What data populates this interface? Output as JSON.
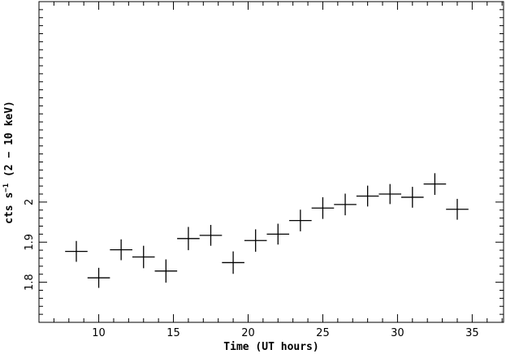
{
  "chart_data": {
    "type": "scatter",
    "xlabel": "Time (UT hours)",
    "ylabel": "cts s",
    "ylabel_sup": "−1",
    "ylabel_tail": " (2 − 10 keV)",
    "xlim": [
      6,
      37.1
    ],
    "ylim": [
      1.7,
      2.5
    ],
    "x_ticks": [
      10,
      15,
      20,
      25,
      30,
      35
    ],
    "y_ticks": [
      1.8,
      1.9,
      2.0
    ],
    "y_tick_labels": [
      "1.8",
      "1.9",
      "2"
    ],
    "grid": false,
    "points": [
      {
        "x": 8.5,
        "y": 1.877,
        "xerr": 0.75,
        "yerr": 0.026
      },
      {
        "x": 10.0,
        "y": 1.811,
        "xerr": 0.75,
        "yerr": 0.025
      },
      {
        "x": 11.5,
        "y": 1.881,
        "xerr": 0.75,
        "yerr": 0.026
      },
      {
        "x": 13.0,
        "y": 1.863,
        "xerr": 0.75,
        "yerr": 0.028
      },
      {
        "x": 14.5,
        "y": 1.828,
        "xerr": 0.75,
        "yerr": 0.029
      },
      {
        "x": 16.0,
        "y": 1.909,
        "xerr": 0.75,
        "yerr": 0.029
      },
      {
        "x": 17.5,
        "y": 1.917,
        "xerr": 0.75,
        "yerr": 0.026
      },
      {
        "x": 19.0,
        "y": 1.849,
        "xerr": 0.75,
        "yerr": 0.028
      },
      {
        "x": 20.5,
        "y": 1.904,
        "xerr": 0.75,
        "yerr": 0.028
      },
      {
        "x": 22.0,
        "y": 1.92,
        "xerr": 0.75,
        "yerr": 0.026
      },
      {
        "x": 23.5,
        "y": 1.954,
        "xerr": 0.75,
        "yerr": 0.027
      },
      {
        "x": 25.0,
        "y": 1.985,
        "xerr": 0.75,
        "yerr": 0.027
      },
      {
        "x": 26.5,
        "y": 1.994,
        "xerr": 0.75,
        "yerr": 0.027
      },
      {
        "x": 28.0,
        "y": 2.015,
        "xerr": 0.75,
        "yerr": 0.026
      },
      {
        "x": 29.5,
        "y": 2.02,
        "xerr": 0.75,
        "yerr": 0.025
      },
      {
        "x": 31.0,
        "y": 2.012,
        "xerr": 0.75,
        "yerr": 0.026
      },
      {
        "x": 32.5,
        "y": 2.045,
        "xerr": 0.75,
        "yerr": 0.027
      },
      {
        "x": 34.0,
        "y": 1.982,
        "xerr": 0.75,
        "yerr": 0.026
      }
    ]
  }
}
